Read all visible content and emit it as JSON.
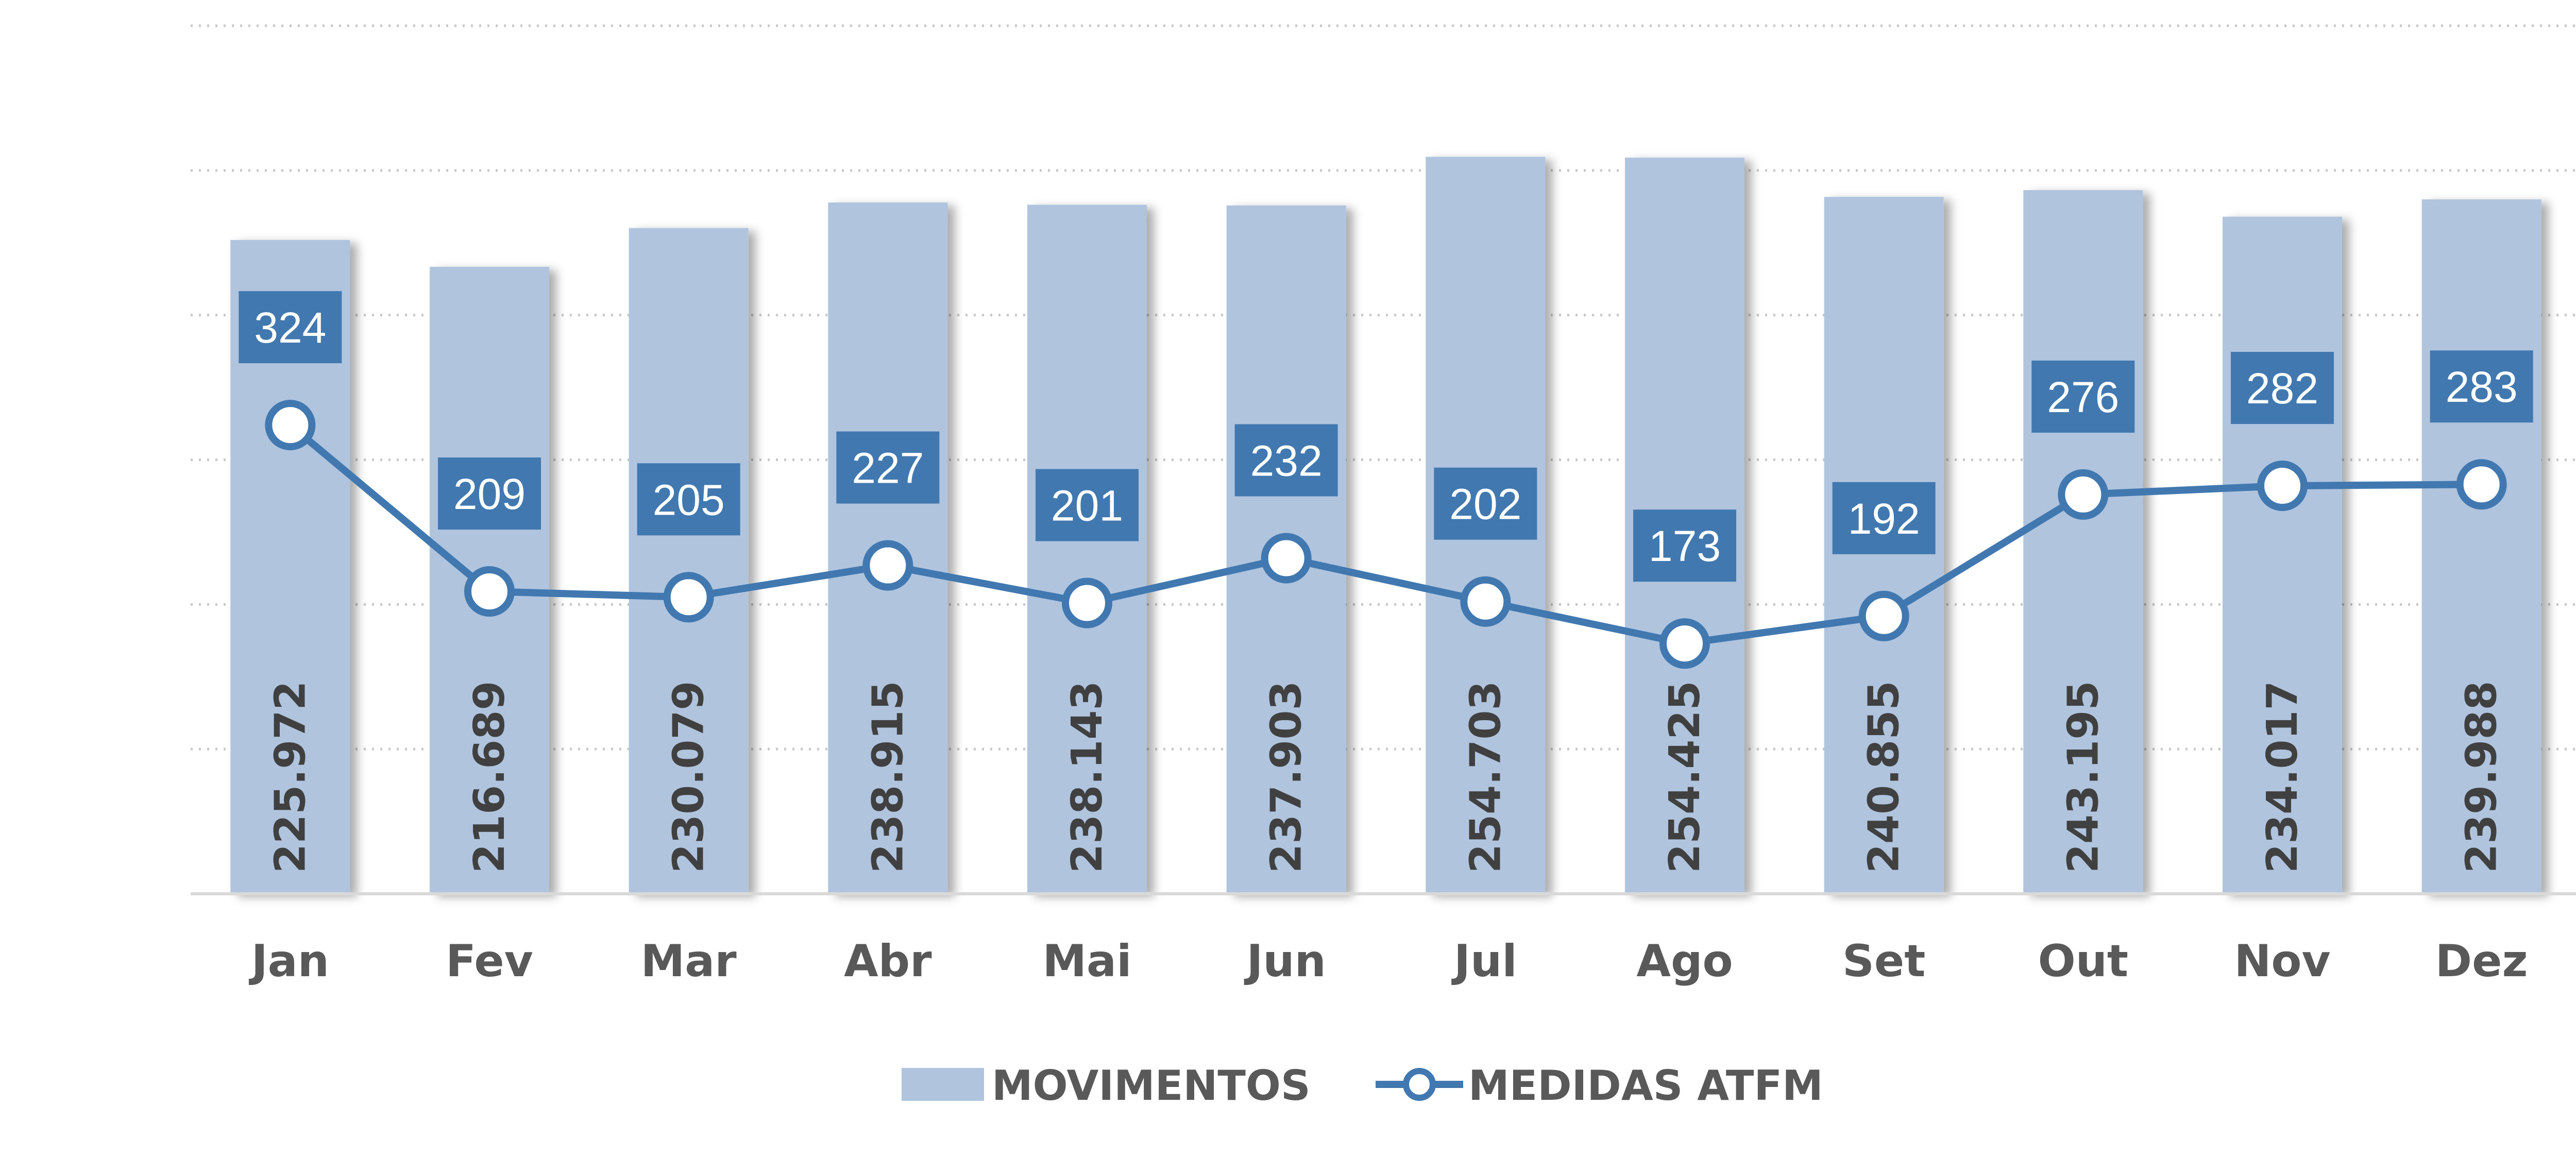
{
  "chart_data": {
    "type": "bar",
    "categories": [
      "Jan",
      "Fev",
      "Mar",
      "Abr",
      "Mai",
      "Jun",
      "Jul",
      "Ago",
      "Set",
      "Out",
      "Nov",
      "Dez"
    ],
    "series": [
      {
        "name": "MOVIMENTOS",
        "type": "bar",
        "values": [
          225972,
          216689,
          230079,
          238915,
          238143,
          237903,
          254703,
          254425,
          240855,
          243195,
          234017,
          239988
        ],
        "labels": [
          "225.972",
          "216.689",
          "230.079",
          "238.915",
          "238.143",
          "237.903",
          "254.703",
          "254.425",
          "240.855",
          "243.195",
          "234.017",
          "239.988"
        ],
        "color": "#B0C4DE"
      },
      {
        "name": "MEDIDAS ATFM",
        "type": "line",
        "values": [
          324,
          209,
          205,
          227,
          201,
          232,
          202,
          173,
          192,
          276,
          282,
          283
        ],
        "labels": [
          "324",
          "209",
          "205",
          "227",
          "201",
          "232",
          "202",
          "173",
          "192",
          "276",
          "282",
          "283"
        ],
        "color": "#4178B0"
      }
    ],
    "ylim_bars": [
      0,
      300000
    ],
    "ylim_line": [
      0,
      600
    ],
    "grid": true,
    "legend_position": "bottom"
  }
}
